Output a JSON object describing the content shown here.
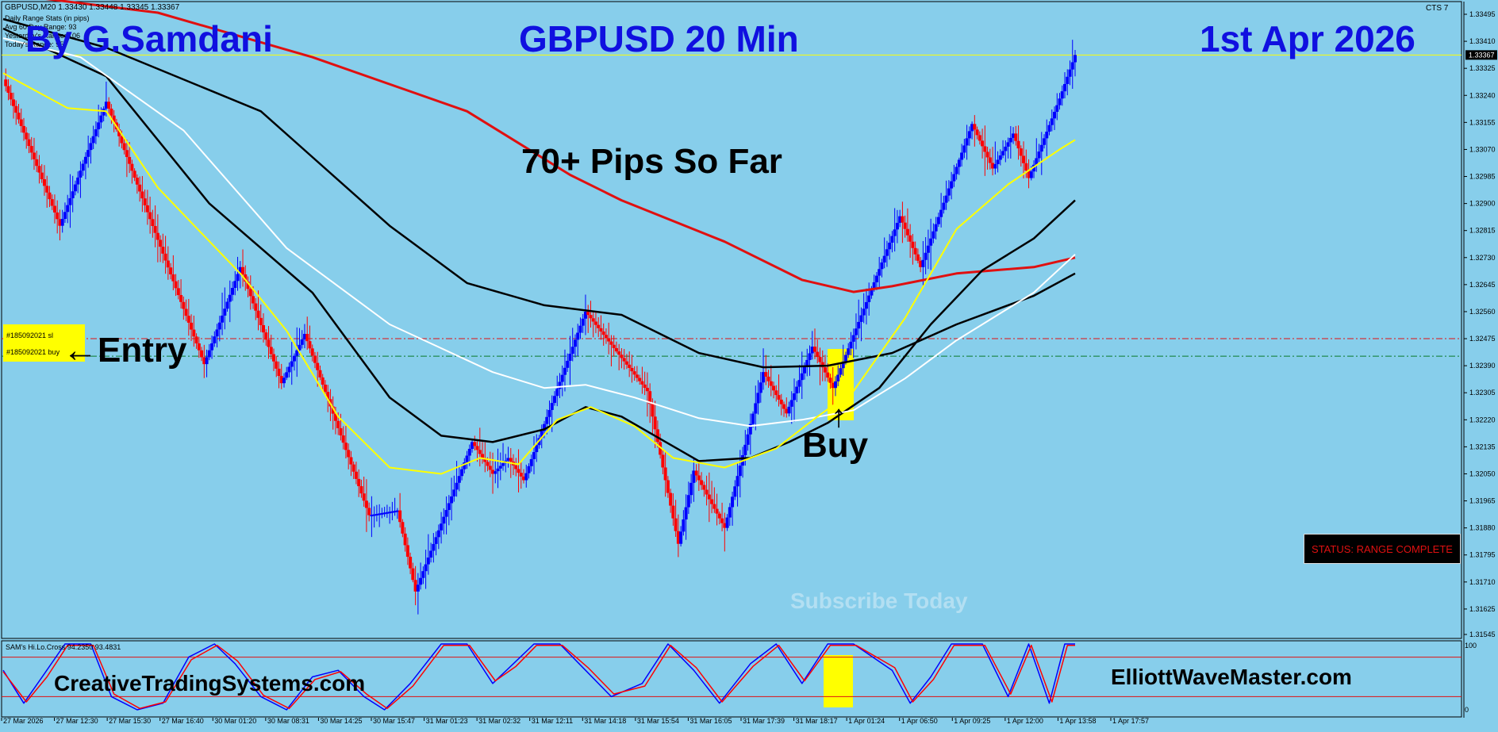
{
  "window": {
    "symbol_header": "GBPUSD,M20  1.33430 1.33448 1.33345 1.33367",
    "top_right_label": "CTS 7"
  },
  "info_panel": [
    "Daily Range Stats (in pips)",
    "Avg 60 Day Range: 93",
    "Yesterday's Range: 106",
    "Today's Range: 95"
  ],
  "titles": {
    "author": "By G.Samdani",
    "instrument": "GBPUSD 20 Min",
    "date": "1st Apr 2026",
    "pips": "70+ Pips So Far",
    "entry": "←Entry",
    "buy": "Buy",
    "watermark": "Subscribe Today",
    "site_left": "CreativeTradingSystems.com",
    "site_right": "ElliottWaveMaster.com"
  },
  "status": "STATUS: RANGE COMPLETE",
  "trade_tags": [
    "#185092021 sl",
    "#185092021 buy"
  ],
  "indicator_label": "SAM's Hi.Lo.Cross 94.2350 93.4831",
  "indicator_scale": [
    "100",
    "0"
  ],
  "colors": {
    "background": "#87CEEB",
    "bull": "#0000FF",
    "bear": "#FF0000",
    "ema_red": "#E01010",
    "ema_black": "#000000",
    "ema_white": "#FFFFFF",
    "ema_yellow": "#FFFF00",
    "highlight": "#FFFF00"
  },
  "chart_data": {
    "type": "line",
    "title": "GBPUSD 20 Min",
    "ylim": [
      1.31545,
      1.33495
    ],
    "y_ticks": [
      "1.33495",
      "1.33410",
      "1.33325",
      "1.33240",
      "1.33155",
      "1.33070",
      "1.32985",
      "1.32900",
      "1.32815",
      "1.32730",
      "1.32645",
      "1.32560",
      "1.32475",
      "1.32390",
      "1.32305",
      "1.32220",
      "1.32135",
      "1.32050",
      "1.31965",
      "1.31880",
      "1.31795",
      "1.31710",
      "1.31625",
      "1.31545"
    ],
    "current_price": "1.33367",
    "x_labels": [
      "27 Mar 2026",
      "27 Mar 12:30",
      "27 Mar 15:30",
      "27 Mar 16:40",
      "30 Mar 01:20",
      "30 Mar 08:31",
      "30 Mar 14:25",
      "30 Mar 15:47",
      "31 Mar 01:23",
      "31 Mar 02:32",
      "31 Mar 12:11",
      "31 Mar 14:18",
      "31 Mar 15:54",
      "31 Mar 16:05",
      "31 Mar 17:39",
      "31 Mar 18:17",
      "1 Apr 01:24",
      "1 Apr 06:50",
      "1 Apr 09:25",
      "1 Apr 12:00",
      "1 Apr 13:58",
      "1 Apr 17:57"
    ],
    "levels": {
      "entry": 1.3242,
      "stop": 1.32475
    },
    "swing_pivots": [
      [
        0,
        1.3329
      ],
      [
        22,
        1.3283
      ],
      [
        40,
        1.3322
      ],
      [
        78,
        1.32395
      ],
      [
        92,
        1.327
      ],
      [
        108,
        1.32335
      ],
      [
        117,
        1.3249
      ],
      [
        142,
        1.3192
      ],
      [
        153,
        1.31935
      ],
      [
        160,
        1.3168
      ],
      [
        182,
        1.3215
      ],
      [
        190,
        1.3205
      ],
      [
        196,
        1.321
      ],
      [
        202,
        1.3203
      ],
      [
        226,
        1.3256
      ],
      [
        250,
        1.3231
      ],
      [
        262,
        1.3183
      ],
      [
        268,
        1.3206
      ],
      [
        280,
        1.3188
      ],
      [
        295,
        1.3237
      ],
      [
        304,
        1.3224
      ],
      [
        314,
        1.3245
      ],
      [
        322,
        1.3232
      ],
      [
        348,
        1.3286
      ],
      [
        356,
        1.327
      ],
      [
        376,
        1.3315
      ],
      [
        384,
        1.3301
      ],
      [
        392,
        1.3312
      ],
      [
        398,
        1.3298
      ],
      [
        410,
        1.3323
      ],
      [
        416,
        1.33367
      ]
    ],
    "series": [
      {
        "name": "",
        "color": "#E01010",
        "points": [
          [
            0,
            1.3356
          ],
          [
            60,
            1.335
          ],
          [
            120,
            1.3336
          ],
          [
            180,
            1.3319
          ],
          [
            220,
            1.3299
          ],
          [
            240,
            1.3291
          ],
          [
            280,
            1.3278
          ],
          [
            310,
            1.3266
          ],
          [
            330,
            1.32622
          ],
          [
            345,
            1.3264
          ],
          [
            370,
            1.3268
          ],
          [
            400,
            1.327
          ],
          [
            416,
            1.3273
          ]
        ]
      },
      {
        "name": "",
        "color": "#000000",
        "points": [
          [
            0,
            1.3348
          ],
          [
            40,
            1.3339
          ],
          [
            100,
            1.3319
          ],
          [
            150,
            1.3283
          ],
          [
            180,
            1.3265
          ],
          [
            210,
            1.3258
          ],
          [
            240,
            1.3255
          ],
          [
            270,
            1.3243
          ],
          [
            295,
            1.32385
          ],
          [
            320,
            1.3239
          ],
          [
            345,
            1.3243
          ],
          [
            370,
            1.3252
          ],
          [
            400,
            1.3261
          ],
          [
            416,
            1.3268
          ]
        ]
      },
      {
        "name": "",
        "color": "#000000",
        "points": [
          [
            0,
            1.3345
          ],
          [
            40,
            1.333
          ],
          [
            80,
            1.329
          ],
          [
            120,
            1.3262
          ],
          [
            150,
            1.3229
          ],
          [
            170,
            1.3217
          ],
          [
            190,
            1.3215
          ],
          [
            210,
            1.3219
          ],
          [
            226,
            1.3226
          ],
          [
            240,
            1.3223
          ],
          [
            270,
            1.3209
          ],
          [
            290,
            1.321
          ],
          [
            305,
            1.3215
          ],
          [
            320,
            1.3221
          ],
          [
            340,
            1.3232
          ],
          [
            360,
            1.3252
          ],
          [
            380,
            1.3269
          ],
          [
            400,
            1.3279
          ],
          [
            416,
            1.3291
          ]
        ]
      },
      {
        "name": "",
        "color": "#FFFFFF",
        "points": [
          [
            0,
            1.3342
          ],
          [
            30,
            1.3336
          ],
          [
            70,
            1.3313
          ],
          [
            110,
            1.3276
          ],
          [
            150,
            1.3252
          ],
          [
            190,
            1.3237
          ],
          [
            210,
            1.3232
          ],
          [
            226,
            1.3233
          ],
          [
            245,
            1.3229
          ],
          [
            270,
            1.32225
          ],
          [
            290,
            1.322
          ],
          [
            310,
            1.3222
          ],
          [
            330,
            1.3225
          ],
          [
            350,
            1.3235
          ],
          [
            370,
            1.3247
          ],
          [
            400,
            1.3262
          ],
          [
            416,
            1.3274
          ]
        ]
      },
      {
        "name": "",
        "color": "#FFFF00",
        "points": [
          [
            0,
            1.3331
          ],
          [
            25,
            1.332
          ],
          [
            40,
            1.3319
          ],
          [
            60,
            1.3295
          ],
          [
            92,
            1.3268
          ],
          [
            110,
            1.325
          ],
          [
            130,
            1.3223
          ],
          [
            150,
            1.3207
          ],
          [
            170,
            1.3205
          ],
          [
            185,
            1.321
          ],
          [
            200,
            1.3208
          ],
          [
            215,
            1.3222
          ],
          [
            228,
            1.3226
          ],
          [
            245,
            1.322
          ],
          [
            260,
            1.321
          ],
          [
            280,
            1.3207
          ],
          [
            300,
            1.3213
          ],
          [
            316,
            1.3223
          ],
          [
            330,
            1.3231
          ],
          [
            350,
            1.3254
          ],
          [
            370,
            1.3282
          ],
          [
            390,
            1.3296
          ],
          [
            410,
            1.3307
          ],
          [
            416,
            1.331
          ]
        ]
      }
    ],
    "indicator": {
      "ylim": [
        0,
        100
      ],
      "series": [
        {
          "name": "",
          "color": "#0000FF",
          "points": [
            [
              0,
              60
            ],
            [
              8,
              10
            ],
            [
              16,
              55
            ],
            [
              24,
              100
            ],
            [
              34,
              100
            ],
            [
              42,
              20
            ],
            [
              52,
              0
            ],
            [
              62,
              10
            ],
            [
              72,
              80
            ],
            [
              82,
              100
            ],
            [
              90,
              70
            ],
            [
              100,
              20
            ],
            [
              110,
              0
            ],
            [
              120,
              50
            ],
            [
              130,
              60
            ],
            [
              140,
              20
            ],
            [
              148,
              0
            ],
            [
              158,
              40
            ],
            [
              170,
              100
            ],
            [
              180,
              100
            ],
            [
              190,
              40
            ],
            [
              198,
              70
            ],
            [
              206,
              100
            ],
            [
              216,
              100
            ],
            [
              226,
              60
            ],
            [
              236,
              20
            ],
            [
              248,
              40
            ],
            [
              258,
              100
            ],
            [
              268,
              60
            ],
            [
              278,
              10
            ],
            [
              290,
              70
            ],
            [
              300,
              100
            ],
            [
              310,
              40
            ],
            [
              320,
              100
            ],
            [
              330,
              100
            ],
            [
              345,
              60
            ],
            [
              352,
              10
            ],
            [
              360,
              50
            ],
            [
              368,
              100
            ],
            [
              380,
              100
            ],
            [
              390,
              20
            ],
            [
              398,
              100
            ],
            [
              406,
              10
            ],
            [
              412,
              100
            ],
            [
              416,
              100
            ]
          ]
        },
        {
          "name": "",
          "color": "#FF0000",
          "points": [
            [
              0,
              58
            ],
            [
              9,
              12
            ],
            [
              17,
              50
            ],
            [
              25,
              98
            ],
            [
              35,
              98
            ],
            [
              43,
              24
            ],
            [
              53,
              2
            ],
            [
              63,
              12
            ],
            [
              73,
              76
            ],
            [
              83,
              98
            ],
            [
              91,
              74
            ],
            [
              101,
              22
            ],
            [
              111,
              2
            ],
            [
              121,
              46
            ],
            [
              131,
              58
            ],
            [
              141,
              24
            ],
            [
              149,
              2
            ],
            [
              159,
              36
            ],
            [
              171,
              98
            ],
            [
              181,
              98
            ],
            [
              191,
              44
            ],
            [
              199,
              66
            ],
            [
              207,
              98
            ],
            [
              217,
              98
            ],
            [
              227,
              64
            ],
            [
              237,
              24
            ],
            [
              249,
              36
            ],
            [
              259,
              98
            ],
            [
              269,
              64
            ],
            [
              279,
              12
            ],
            [
              291,
              66
            ],
            [
              301,
              98
            ],
            [
              311,
              44
            ],
            [
              321,
              98
            ],
            [
              331,
              98
            ],
            [
              346,
              64
            ],
            [
              353,
              12
            ],
            [
              361,
              46
            ],
            [
              369,
              98
            ],
            [
              381,
              98
            ],
            [
              391,
              24
            ],
            [
              399,
              98
            ],
            [
              407,
              12
            ],
            [
              413,
              98
            ],
            [
              416,
              98
            ]
          ]
        }
      ]
    },
    "bar_count": 417
  }
}
